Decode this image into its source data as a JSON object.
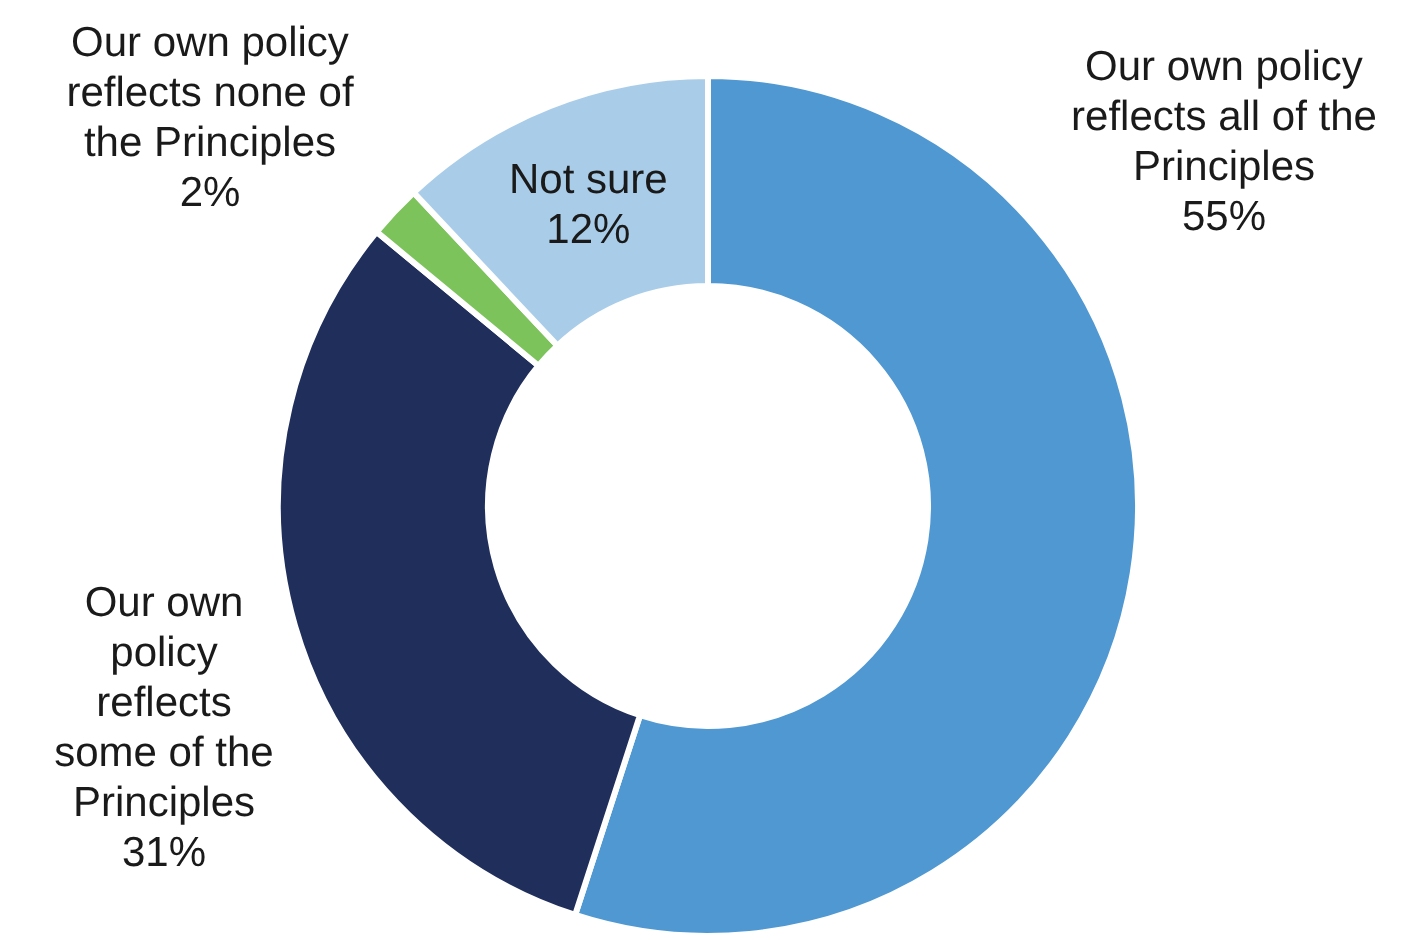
{
  "chart_data": {
    "type": "donut",
    "categories": [
      "Our own policy\nreflects all of the\nPrinciples",
      "Our own\npolicy\nreflects\nsome of the\nPrinciples",
      "Our own policy\nreflects none of\nthe Principles",
      "Not sure"
    ],
    "values": [
      55,
      31,
      2,
      12
    ],
    "colors": [
      "#4f98d2",
      "#1f2e5a",
      "#7cc35b",
      "#a9cde9"
    ],
    "value_labels": [
      "55%",
      "31%",
      "2%",
      "12%"
    ]
  }
}
